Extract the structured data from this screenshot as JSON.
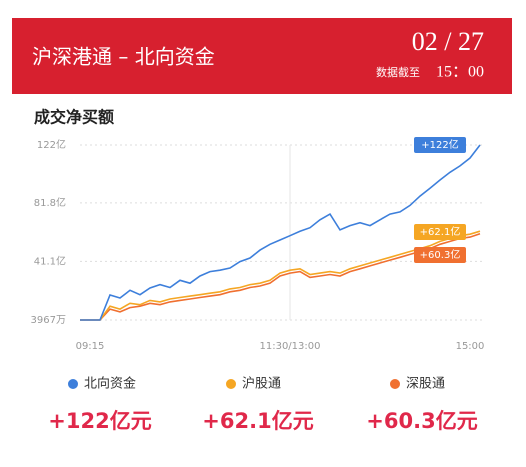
{
  "chart_data": {
    "type": "line",
    "title": "沪深港通 – 北向资金",
    "date": "02 / 27",
    "as_of_label": "数据截至",
    "as_of_time": "15：00",
    "subtitle": "成交净买额",
    "categories": [
      "09:15",
      null,
      null,
      null,
      null,
      null,
      null,
      null,
      null,
      null,
      null,
      null,
      null,
      null,
      null,
      null,
      null,
      null,
      null,
      null,
      null,
      "11:30/13:00",
      null,
      null,
      null,
      null,
      null,
      null,
      null,
      null,
      null,
      null,
      null,
      null,
      null,
      null,
      null,
      null,
      null,
      null,
      "15:00"
    ],
    "ylim": [
      0.3967,
      122
    ],
    "yticks": [
      {
        "value": 0.3967,
        "label": "3967万"
      },
      {
        "value": 41.1,
        "label": "41.1亿"
      },
      {
        "value": 81.8,
        "label": "81.8亿"
      },
      {
        "value": 122,
        "label": "122亿"
      }
    ],
    "grid": true,
    "series": [
      {
        "name": "北向资金",
        "color": "#3d7fdb",
        "end_label": "+122亿",
        "total_label": "+122亿元",
        "values": [
          0.3967,
          0.3967,
          0.3967,
          17.8,
          15.7,
          21,
          18,
          22.6,
          25,
          23,
          28,
          26,
          31,
          34,
          35,
          36.5,
          41,
          43.5,
          49,
          53,
          56,
          59,
          62,
          64.5,
          70,
          74,
          63,
          66,
          68,
          66,
          70,
          74,
          75.5,
          80,
          86.5,
          92,
          97.7,
          103,
          107.5,
          113,
          122
        ]
      },
      {
        "name": "沪股通",
        "color": "#f5a623",
        "end_label": "+62.1亿",
        "total_label": "+62.1亿元",
        "values": [
          0.3967,
          0.3967,
          0.3967,
          10,
          8,
          12,
          11,
          14,
          13,
          15,
          16,
          17,
          18,
          19,
          20,
          22,
          23,
          25,
          26,
          28,
          33,
          35,
          36,
          32,
          33,
          34,
          33,
          36,
          38,
          40,
          42,
          44,
          46,
          48,
          50,
          52,
          55,
          57,
          59,
          60,
          62.1
        ]
      },
      {
        "name": "深股通",
        "color": "#f07030",
        "end_label": "+60.3亿",
        "total_label": "+60.3亿元",
        "values": [
          0.3967,
          0.3967,
          0.3967,
          8,
          6,
          9,
          10,
          12,
          11,
          13,
          14,
          15,
          16,
          17,
          18,
          20,
          21,
          23,
          24,
          26,
          31,
          33,
          34,
          30,
          31,
          32,
          31,
          34,
          36,
          38,
          40,
          42,
          44,
          46,
          48,
          50,
          53,
          55,
          57,
          58,
          60.3
        ]
      }
    ]
  }
}
